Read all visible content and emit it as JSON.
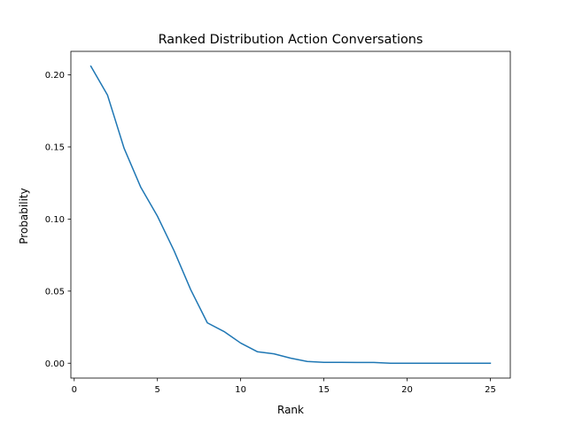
{
  "chart_data": {
    "type": "line",
    "title": "Ranked Distribution Action Conversations",
    "xlabel": "Rank",
    "ylabel": "Probability",
    "xlim": [
      -0.2,
      26.2
    ],
    "ylim": [
      -0.0103,
      0.2163
    ],
    "xticks": [
      0,
      5,
      10,
      15,
      20,
      25
    ],
    "yticks": [
      0.0,
      0.05,
      0.1,
      0.15,
      0.2
    ],
    "xtick_labels": [
      "0",
      "5",
      "10",
      "15",
      "20",
      "25"
    ],
    "ytick_labels": [
      "0.00",
      "0.05",
      "0.10",
      "0.15",
      "0.20"
    ],
    "grid": false,
    "series": [
      {
        "color": "#1f77b4",
        "x": [
          1,
          2,
          3,
          4,
          5,
          6,
          7,
          8,
          9,
          10,
          11,
          12,
          13,
          14,
          15,
          16,
          17,
          18,
          19,
          20,
          21,
          22,
          23,
          24,
          25
        ],
        "y": [
          0.206,
          0.186,
          0.149,
          0.122,
          0.102,
          0.078,
          0.051,
          0.028,
          0.022,
          0.014,
          0.008,
          0.0065,
          0.0035,
          0.0012,
          0.0006,
          0.0006,
          0.0005,
          0.0005,
          0.0,
          0.0,
          0.0,
          0.0,
          0.0,
          0.0,
          0.0
        ]
      }
    ]
  }
}
